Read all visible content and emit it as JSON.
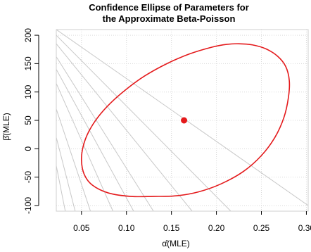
{
  "chart_data": {
    "type": "scatter",
    "title_line1": "Confidence Ellipse of Parameters for",
    "title_line2": "the Approximate Beta-Poisson",
    "xlabel": "α̂(MLE)",
    "ylabel": "β̂(MLE)",
    "xlim": [
      0.022,
      0.302
    ],
    "ylim": [
      -110,
      210
    ],
    "xticks": [
      0.05,
      0.1,
      0.15,
      0.2,
      0.25,
      0.3
    ],
    "xtick_labels": [
      "0.05",
      "0.10",
      "0.15",
      "0.20",
      "0.25",
      "0.30"
    ],
    "yticks": [
      -100,
      -50,
      0,
      50,
      100,
      150,
      200
    ],
    "ytick_labels": [
      "-100",
      "-50",
      "0",
      "50",
      "100",
      "150",
      "200"
    ],
    "grid": true,
    "ellipse": {
      "color": "#e41a1c",
      "points": [
        [
          0.225,
          185
        ],
        [
          0.24,
          183
        ],
        [
          0.255,
          176
        ],
        [
          0.268,
          163
        ],
        [
          0.277,
          145
        ],
        [
          0.281,
          120
        ],
        [
          0.28,
          90
        ],
        [
          0.275,
          55
        ],
        [
          0.265,
          20
        ],
        [
          0.25,
          -12
        ],
        [
          0.23,
          -40
        ],
        [
          0.205,
          -62
        ],
        [
          0.18,
          -76
        ],
        [
          0.155,
          -83
        ],
        [
          0.13,
          -84
        ],
        [
          0.105,
          -84
        ],
        [
          0.08,
          -78
        ],
        [
          0.062,
          -64
        ],
        [
          0.053,
          -45
        ],
        [
          0.05,
          -20
        ],
        [
          0.052,
          5
        ],
        [
          0.058,
          30
        ],
        [
          0.068,
          55
        ],
        [
          0.082,
          80
        ],
        [
          0.1,
          105
        ],
        [
          0.12,
          128
        ],
        [
          0.145,
          150
        ],
        [
          0.17,
          167
        ],
        [
          0.195,
          179
        ],
        [
          0.212,
          184
        ],
        [
          0.225,
          185
        ]
      ]
    },
    "point_estimate": {
      "x": 0.164,
      "y": 50,
      "color": "#e41a1c"
    },
    "reference_lines": [
      {
        "x1": 0.022,
        "y1": 210,
        "x2": 0.302,
        "y2": -100
      },
      {
        "x1": 0.022,
        "y1": 200,
        "x2": 0.216,
        "y2": -110
      },
      {
        "x1": 0.022,
        "y1": 185,
        "x2": 0.173,
        "y2": -110
      },
      {
        "x1": 0.022,
        "y1": 162,
        "x2": 0.13,
        "y2": -110
      },
      {
        "x1": 0.022,
        "y1": 140,
        "x2": 0.108,
        "y2": -110
      },
      {
        "x1": 0.022,
        "y1": 115,
        "x2": 0.085,
        "y2": -110
      },
      {
        "x1": 0.022,
        "y1": 70,
        "x2": 0.06,
        "y2": -110
      },
      {
        "x1": 0.022,
        "y1": 20,
        "x2": 0.043,
        "y2": -110
      },
      {
        "x1": 0.022,
        "y1": -30,
        "x2": 0.032,
        "y2": -110
      }
    ]
  }
}
